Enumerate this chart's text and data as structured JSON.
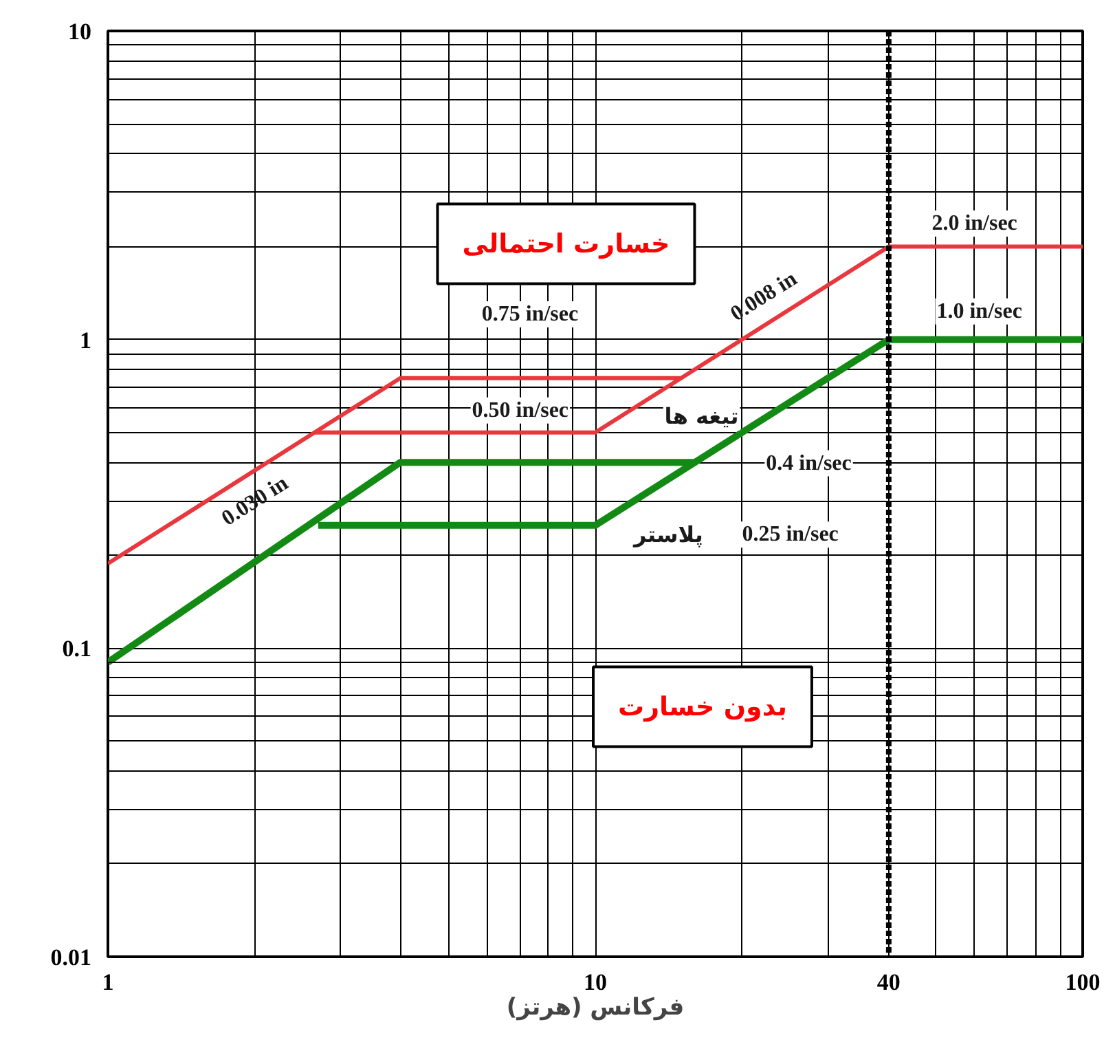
{
  "chart_data": {
    "type": "line",
    "xlabel": "فرکانس (هرتز)",
    "log": "xy",
    "grid": true,
    "marker": "none",
    "line_style": "solid",
    "xlim": [
      1,
      100
    ],
    "ylim": [
      0.01,
      10
    ],
    "xticks": [
      1,
      {
        "value": 2,
        "label": null
      },
      {
        "value": 3,
        "label": null
      },
      {
        "value": 4,
        "label": null
      },
      {
        "value": 5,
        "label": null
      },
      {
        "value": 6,
        "label": null
      },
      {
        "value": 7,
        "label": null
      },
      {
        "value": 8,
        "label": null
      },
      {
        "value": 9,
        "label": null
      },
      10,
      {
        "value": 20,
        "label": null
      },
      {
        "value": 30,
        "label": null
      },
      40,
      {
        "value": 50,
        "label": null
      },
      {
        "value": 60,
        "label": null
      },
      {
        "value": 70,
        "label": null
      },
      {
        "value": 80,
        "label": null
      },
      {
        "value": 90,
        "label": null
      },
      100
    ],
    "yticks": [
      0.01,
      {
        "value": 0.02,
        "label": null
      },
      {
        "value": 0.03,
        "label": null
      },
      {
        "value": 0.04,
        "label": null
      },
      {
        "value": 0.05,
        "label": null
      },
      {
        "value": 0.06,
        "label": null
      },
      {
        "value": 0.07,
        "label": null
      },
      {
        "value": 0.08,
        "label": null
      },
      {
        "value": 0.09,
        "label": null
      },
      0.1,
      {
        "value": 0.2,
        "label": null
      },
      {
        "value": 0.3,
        "label": null
      },
      {
        "value": 0.4,
        "label": null
      },
      {
        "value": 0.5,
        "label": null
      },
      {
        "value": 0.6,
        "label": null
      },
      {
        "value": 0.7,
        "label": null
      },
      {
        "value": 0.8,
        "label": null
      },
      {
        "value": 0.9,
        "label": null
      },
      1,
      {
        "value": 2,
        "label": null
      },
      {
        "value": 3,
        "label": null
      },
      {
        "value": 4,
        "label": null
      },
      {
        "value": 5,
        "label": null
      },
      {
        "value": 6,
        "label": null
      },
      {
        "value": 7,
        "label": null
      },
      {
        "value": 8,
        "label": null
      },
      {
        "value": 9,
        "label": null
      },
      10
    ],
    "series": [
      {
        "color": "#e8383d",
        "x": [
          1,
          3.98,
          15,
          40,
          100
        ],
        "values": [
          0.188,
          0.75,
          0.75,
          2,
          2
        ]
      },
      {
        "color": "#e8383d",
        "x": [
          2.65,
          10,
          15
        ],
        "values": [
          0.5,
          0.5,
          0.75
        ]
      },
      {
        "color": "#138a13",
        "x": [
          1,
          3.98,
          16,
          40,
          100
        ],
        "values": [
          0.09,
          0.4,
          0.4,
          1,
          1
        ]
      },
      {
        "color": "#138a13",
        "x": [
          2.7,
          10,
          16
        ],
        "values": [
          0.25,
          0.25,
          0.4
        ]
      }
    ],
    "ref_lines": [
      {
        "axis": "x",
        "value": 40,
        "color": "#000000",
        "line_style": "dashed"
      }
    ],
    "annotations": [
      "خسارت احتمالی",
      "بدون خسارت",
      "0.030 in",
      "0.008 in",
      "0.75 in/sec",
      "0.50 in/sec",
      "2.0 in/sec",
      "1.0 in/sec",
      "0.4 in/sec",
      "0.25 in/sec",
      "تیغه ها",
      "پلاستر"
    ]
  }
}
